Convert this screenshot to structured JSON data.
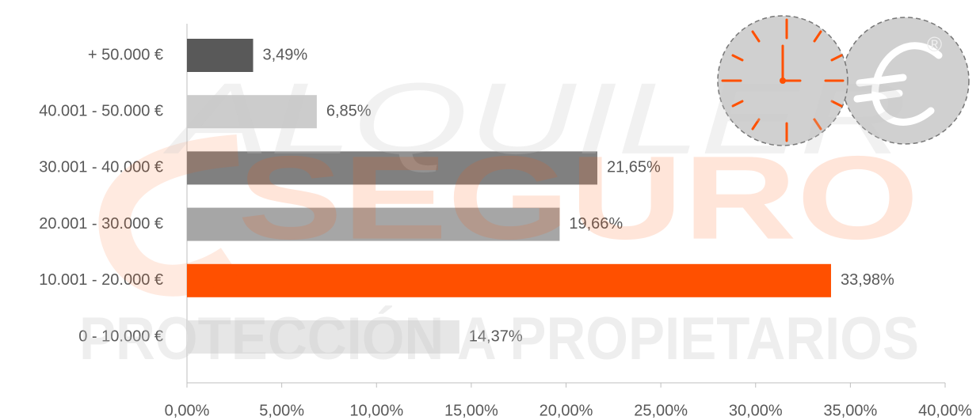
{
  "chart_data": {
    "type": "bar",
    "orientation": "horizontal",
    "categories": [
      "+ 50.000 €",
      "40.001 - 50.000 €",
      "30.001 - 40.000 €",
      "20.001 - 30.000 €",
      "10.001 - 20.000 €",
      "0 - 10.000 €"
    ],
    "values": [
      3.49,
      6.85,
      21.65,
      19.66,
      33.98,
      14.37
    ],
    "value_labels": [
      "3,49%",
      "6,85%",
      "21,65%",
      "19,66%",
      "33,98%",
      "14,37%"
    ],
    "colors": [
      "#595959",
      "#cccccc",
      "#808080",
      "#a6a6a6",
      "#ff5000",
      "#e6e6e6"
    ],
    "xlim": [
      0,
      40
    ],
    "xticks": [
      {
        "value": 0,
        "label": "0,00%"
      },
      {
        "value": 5,
        "label": "5,00%"
      },
      {
        "value": 10,
        "label": "10,00%"
      },
      {
        "value": 15,
        "label": "15,00%"
      },
      {
        "value": 20,
        "label": "20,00%"
      },
      {
        "value": 25,
        "label": "25,00%"
      },
      {
        "value": 30,
        "label": "30,00%"
      },
      {
        "value": 35,
        "label": "35,00%"
      },
      {
        "value": 40,
        "label": "40,00%"
      }
    ],
    "watermark": [
      "ALQUILER",
      "SEGURO",
      "PROTECCIÓN A PROPIETARIOS"
    ],
    "logo_mark": "®"
  }
}
